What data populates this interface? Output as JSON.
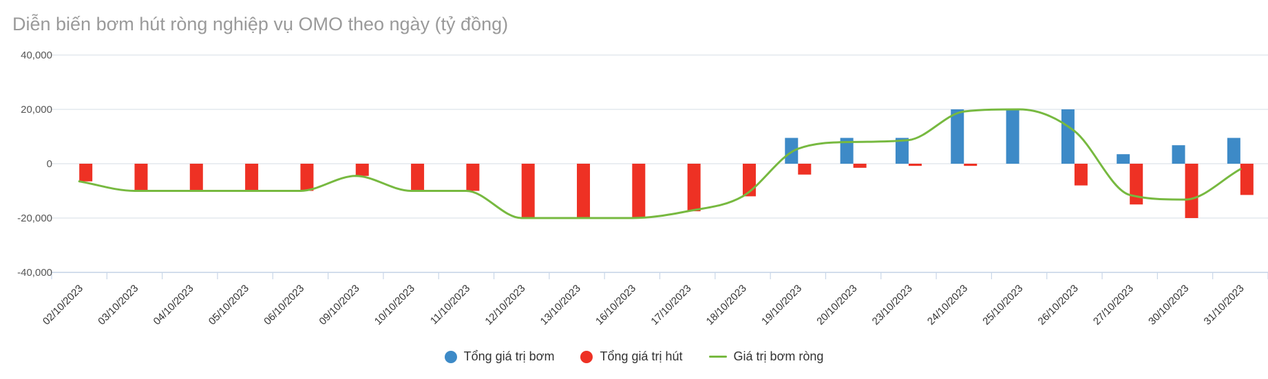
{
  "title": "Diễn biến bơm hút ròng nghiệp vụ OMO theo ngày (tỷ đồng)",
  "colors": {
    "inject": "#3d8ac7",
    "withdraw": "#ee3124",
    "net": "#77b940",
    "grid": "#e3e8ee",
    "axis": "#c8d6e8"
  },
  "legend": {
    "inject": "Tổng giá trị bơm",
    "withdraw": "Tổng giá trị hút",
    "net": "Giá trị bơm ròng"
  },
  "chart_data": {
    "type": "bar",
    "title": "Diễn biến bơm hút ròng nghiệp vụ OMO theo ngày (tỷ đồng)",
    "categories": [
      "02/10/2023",
      "03/10/2023",
      "04/10/2023",
      "05/10/2023",
      "06/10/2023",
      "09/10/2023",
      "10/10/2023",
      "11/10/2023",
      "12/10/2023",
      "13/10/2023",
      "16/10/2023",
      "17/10/2023",
      "18/10/2023",
      "19/10/2023",
      "20/10/2023",
      "23/10/2023",
      "24/10/2023",
      "25/10/2023",
      "26/10/2023",
      "27/10/2023",
      "30/10/2023",
      "31/10/2023"
    ],
    "ylim": [
      -40000,
      40000
    ],
    "yticks": [
      40000,
      20000,
      0,
      -20000,
      -40000
    ],
    "ytick_labels": [
      "40,000",
      "20,000",
      "0",
      "-20,000",
      "-40,000"
    ],
    "series": [
      {
        "name": "Tổng giá trị bơm",
        "type": "bar",
        "values": [
          0,
          0,
          0,
          0,
          0,
          0,
          0,
          0,
          0,
          0,
          0,
          0,
          0,
          9500,
          9500,
          9500,
          20000,
          20000,
          20000,
          3500,
          6800,
          9500
        ]
      },
      {
        "name": "Tổng giá trị hút",
        "type": "bar",
        "values": [
          -6500,
          -10000,
          -10000,
          -10000,
          -10000,
          -4500,
          -10000,
          -10000,
          -20000,
          -20000,
          -20000,
          -17500,
          -12000,
          -4000,
          -1500,
          -800,
          -800,
          0,
          -8000,
          -15000,
          -20000,
          -11500
        ]
      },
      {
        "name": "Giá trị bơm ròng",
        "type": "line",
        "values": [
          -6500,
          -10000,
          -10000,
          -10000,
          -10000,
          -4500,
          -10000,
          -10000,
          -20000,
          -20000,
          -20000,
          -17500,
          -12000,
          5500,
          8000,
          8700,
          19200,
          20000,
          12000,
          -11500,
          -13200,
          -2000
        ]
      }
    ],
    "grid": true,
    "legend_position": "bottom-center"
  }
}
